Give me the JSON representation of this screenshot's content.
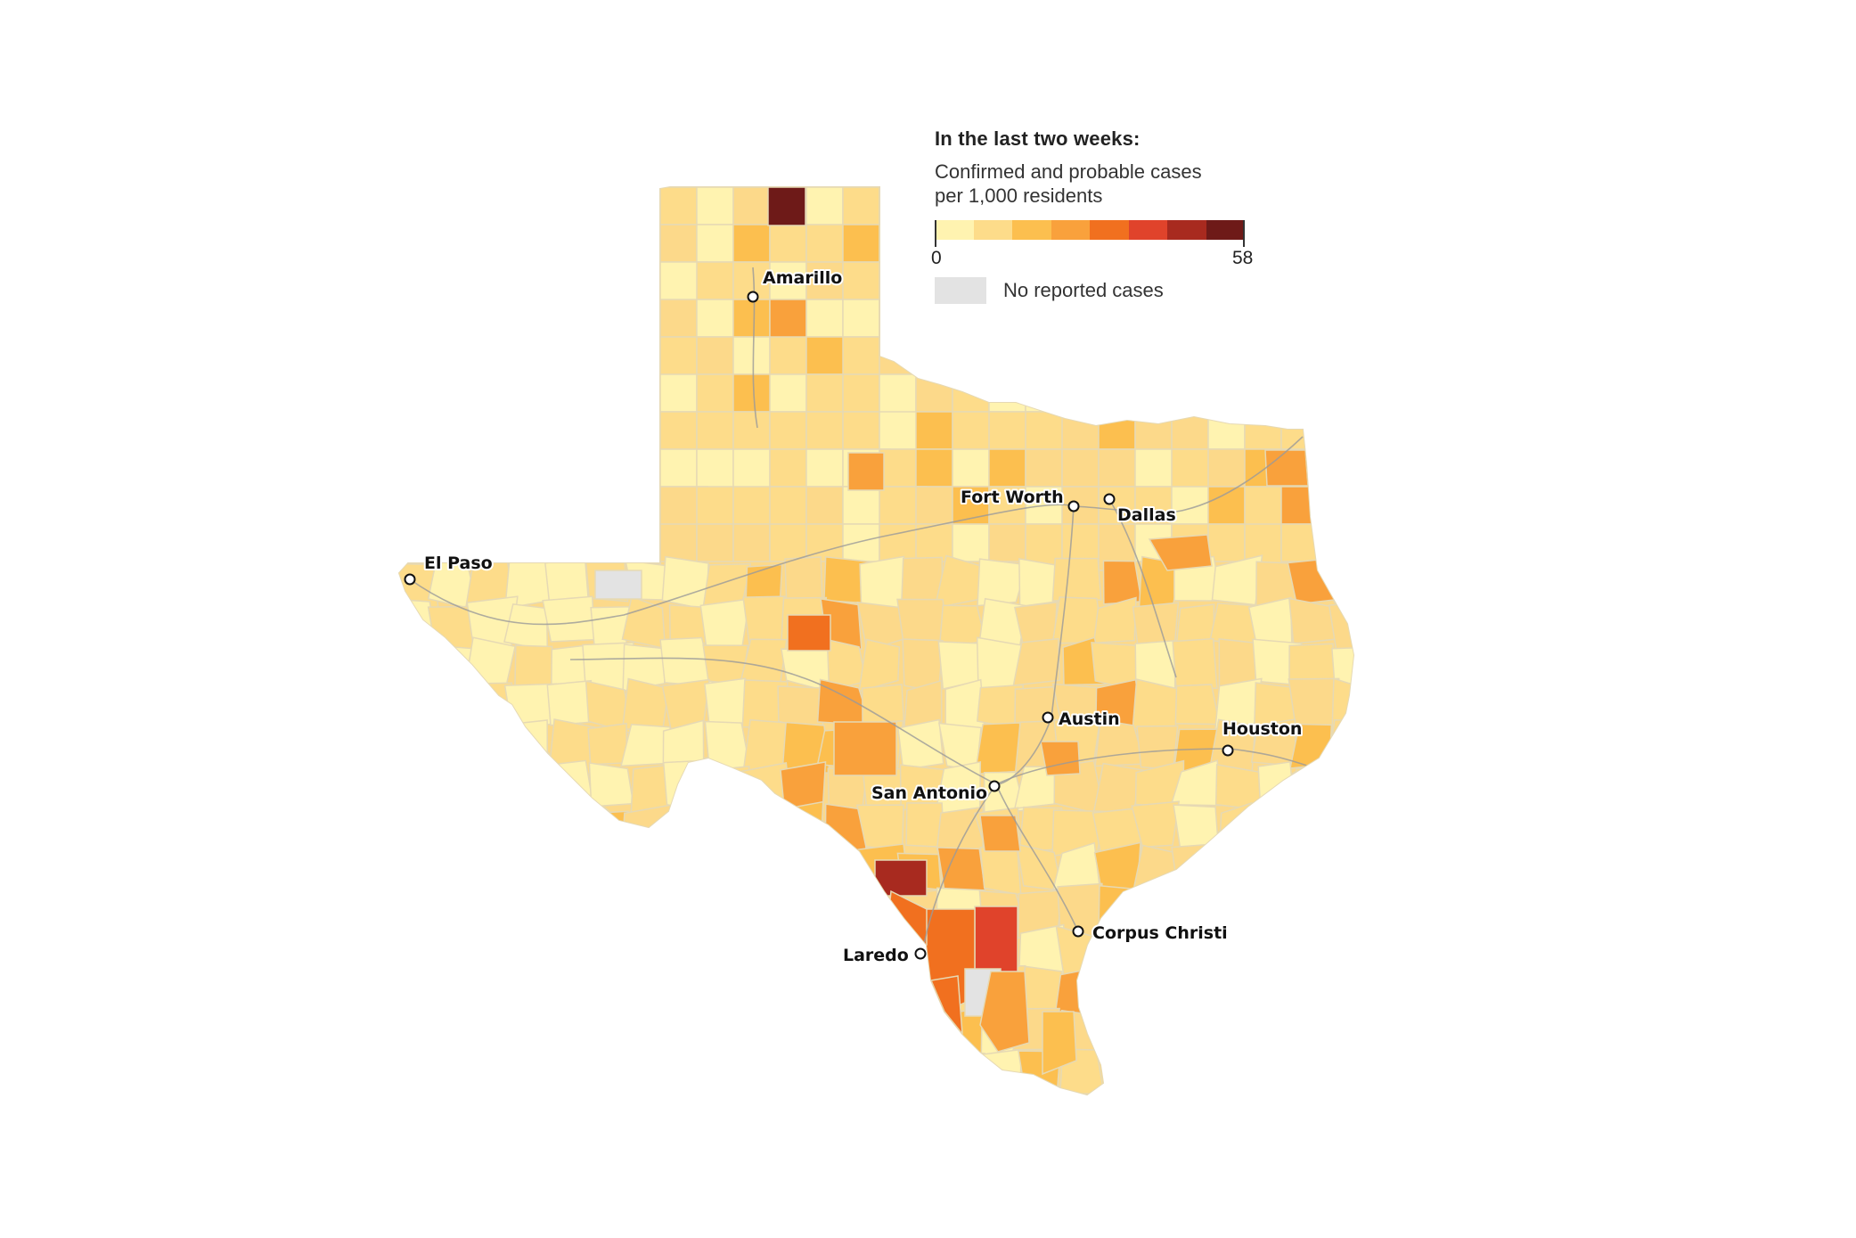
{
  "legend": {
    "title": "In the last two weeks:",
    "subtitle_line1": "Confirmed and probable cases",
    "subtitle_line2": "per 1,000 residents",
    "min_label": "0",
    "max_label": "58",
    "no_data_label": "No reported cases",
    "ramp_colors": [
      "#fff3b0",
      "#fddc8a",
      "#fcbf4f",
      "#f9a13c",
      "#f1701f",
      "#e0432b",
      "#a82a1f",
      "#6e1a18"
    ],
    "no_data_color": "#e3e3e3"
  },
  "cities": [
    {
      "name": "Amarillo"
    },
    {
      "name": "El Paso"
    },
    {
      "name": "Fort Worth"
    },
    {
      "name": "Dallas"
    },
    {
      "name": "Austin"
    },
    {
      "name": "Houston"
    },
    {
      "name": "San Antonio"
    },
    {
      "name": "Laredo"
    },
    {
      "name": "Corpus Christi"
    }
  ],
  "map_data": {
    "type": "choropleth",
    "region": "Texas counties",
    "scale_range": [
      0,
      58
    ],
    "background_fill": "#fcd98a",
    "border_color": "#e6d9b4",
    "road_color": "#9a9a9a"
  }
}
